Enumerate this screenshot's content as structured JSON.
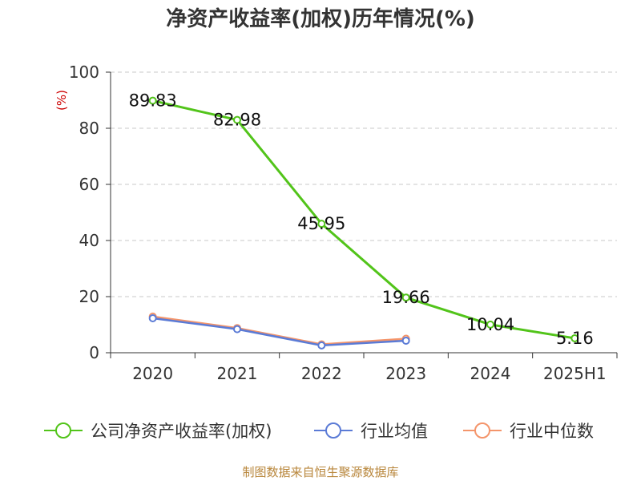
{
  "chart_data": {
    "type": "line",
    "title": "净资产收益率(加权)历年情况(%)",
    "unit_label": "(%)",
    "categories": [
      "2020",
      "2021",
      "2022",
      "2023",
      "2024",
      "2025H1"
    ],
    "ylim": [
      0,
      100
    ],
    "yticks": [
      0,
      20,
      40,
      60,
      80,
      100
    ],
    "grid": true,
    "legend_position": "bottom",
    "series": [
      {
        "name": "公司净资产收益率(加权)",
        "color": "#52c41a",
        "values": [
          89.83,
          82.98,
          45.95,
          19.66,
          10.04,
          5.16
        ],
        "labels": [
          "89.83",
          "82.98",
          "45.95",
          "19.66",
          "10.04",
          "5.16"
        ],
        "show_labels": true
      },
      {
        "name": "行业均值",
        "color": "#5b7bd6",
        "values": [
          12.3,
          8.4,
          2.6,
          4.3,
          null,
          null
        ]
      },
      {
        "name": "行业中位数",
        "color": "#f4956b",
        "values": [
          12.9,
          8.8,
          3.0,
          5.0,
          null,
          null
        ]
      }
    ],
    "source": "制图数据来自恒生聚源数据库"
  }
}
